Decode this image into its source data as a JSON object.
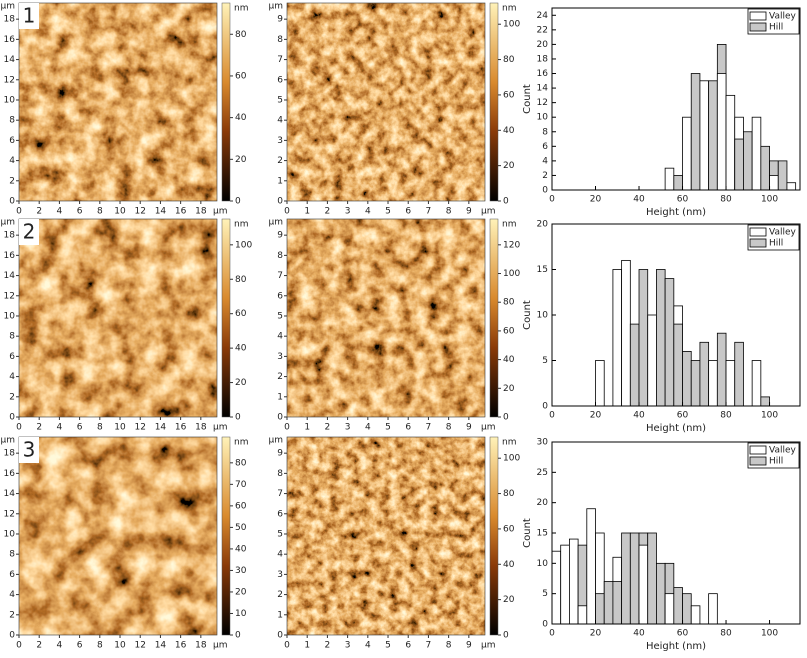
{
  "chart_data": [
    {
      "type": "image",
      "label": "1",
      "x_unit": "μm",
      "y_unit": "μm",
      "z_unit": "nm",
      "xlim": [
        0,
        19.6
      ],
      "xticks": [
        0,
        2,
        4,
        6,
        8,
        10,
        12,
        14,
        16,
        18
      ],
      "ylim": [
        0,
        19.6
      ],
      "yticks": [
        0,
        2,
        4,
        6,
        8,
        10,
        12,
        14,
        16,
        18
      ],
      "zlim": [
        0,
        95
      ],
      "zticks": [
        0,
        20,
        40,
        60,
        80
      ]
    },
    {
      "type": "image",
      "x_unit": "μm",
      "y_unit": "μm",
      "z_unit": "nm",
      "xlim": [
        0,
        9.8
      ],
      "xticks": [
        0,
        1,
        2,
        3,
        4,
        5,
        6,
        7,
        8,
        9
      ],
      "ylim": [
        0,
        9.8
      ],
      "yticks": [
        0,
        1,
        2,
        3,
        4,
        5,
        6,
        7,
        8,
        9
      ],
      "zlim": [
        0,
        112
      ],
      "zticks": [
        0,
        20,
        40,
        60,
        80,
        100
      ]
    },
    {
      "type": "histogram",
      "xlabel": "Height (nm)",
      "ylabel": "Count",
      "bins": [
        52,
        56,
        60,
        64,
        68,
        72,
        76,
        80,
        84,
        88,
        92,
        96,
        100,
        104,
        108,
        112
      ],
      "series": [
        {
          "name": "Valley",
          "color": "#ffffff",
          "values": [
            3,
            0,
            10,
            0,
            15,
            0,
            16,
            13,
            10,
            0,
            10,
            0,
            2,
            0,
            1
          ]
        },
        {
          "name": "Hill",
          "color": "#c8c8c8",
          "values": [
            0,
            2,
            0,
            16,
            0,
            15,
            20,
            0,
            7,
            8,
            0,
            6,
            4,
            4,
            0
          ]
        }
      ],
      "xlim": [
        0,
        114
      ],
      "xticks": [
        0,
        20,
        40,
        60,
        80,
        100
      ],
      "ylim": [
        0,
        25
      ],
      "yticks": [
        0,
        2,
        4,
        6,
        8,
        10,
        12,
        14,
        16,
        18,
        20,
        22,
        24
      ]
    },
    {
      "type": "image",
      "label": "2",
      "x_unit": "μm",
      "y_unit": "μm",
      "z_unit": "nm",
      "xlim": [
        0,
        19.6
      ],
      "xticks": [
        0,
        2,
        4,
        6,
        8,
        10,
        12,
        14,
        16,
        18
      ],
      "ylim": [
        0,
        19.6
      ],
      "yticks": [
        0,
        2,
        4,
        6,
        8,
        10,
        12,
        14,
        16,
        18
      ],
      "zlim": [
        0,
        115
      ],
      "zticks": [
        0,
        20,
        40,
        60,
        80,
        100
      ]
    },
    {
      "type": "image",
      "x_unit": "μm",
      "y_unit": "μm",
      "z_unit": "nm",
      "xlim": [
        0,
        9.8
      ],
      "xticks": [
        0,
        1,
        2,
        3,
        4,
        5,
        6,
        7,
        8,
        9
      ],
      "ylim": [
        0,
        9.8
      ],
      "yticks": [
        0,
        1,
        2,
        3,
        4,
        5,
        6,
        7,
        8,
        9
      ],
      "zlim": [
        0,
        138
      ],
      "zticks": [
        0,
        20,
        40,
        60,
        80,
        100,
        120
      ]
    },
    {
      "type": "histogram",
      "xlabel": "Height (nm)",
      "ylabel": "Count",
      "bins": [
        20,
        24,
        28,
        32,
        36,
        40,
        44,
        48,
        52,
        56,
        60,
        64,
        68,
        72,
        76,
        80,
        84,
        88,
        92,
        96,
        100
      ],
      "series": [
        {
          "name": "Valley",
          "color": "#ffffff",
          "values": [
            5,
            0,
            15,
            16,
            0,
            0,
            10,
            0,
            0,
            11,
            0,
            0,
            0,
            5,
            0,
            5,
            0,
            0,
            5,
            0
          ]
        },
        {
          "name": "Hill",
          "color": "#c8c8c8",
          "values": [
            0,
            0,
            0,
            0,
            9,
            15,
            0,
            15,
            14,
            9,
            6,
            5,
            7,
            0,
            8,
            0,
            7,
            0,
            0,
            1
          ]
        }
      ],
      "xlim": [
        0,
        114
      ],
      "xticks": [
        0,
        20,
        40,
        60,
        80,
        100
      ],
      "ylim": [
        0,
        20
      ],
      "yticks": [
        0,
        5,
        10,
        15,
        20
      ]
    },
    {
      "type": "image",
      "label": "3",
      "x_unit": "μm",
      "y_unit": "μm",
      "z_unit": "nm",
      "xlim": [
        0,
        19.6
      ],
      "xticks": [
        0,
        2,
        4,
        6,
        8,
        10,
        12,
        14,
        16,
        18
      ],
      "ylim": [
        0,
        19.6
      ],
      "yticks": [
        0,
        2,
        4,
        6,
        8,
        10,
        12,
        14,
        16,
        18
      ],
      "zlim": [
        0,
        92
      ],
      "zticks": [
        0,
        10,
        20,
        30,
        40,
        50,
        60,
        70,
        80
      ]
    },
    {
      "type": "image",
      "x_unit": "μm",
      "y_unit": "μm",
      "z_unit": "nm",
      "xlim": [
        0,
        9.8
      ],
      "xticks": [
        0,
        1,
        2,
        3,
        4,
        5,
        6,
        7,
        8,
        9
      ],
      "ylim": [
        0,
        9.8
      ],
      "yticks": [
        0,
        1,
        2,
        3,
        4,
        5,
        6,
        7,
        8,
        9
      ],
      "zlim": [
        0,
        112
      ],
      "zticks": [
        0,
        20,
        40,
        60,
        80,
        100
      ]
    },
    {
      "type": "histogram",
      "xlabel": "Height (nm)",
      "ylabel": "Count",
      "bins": [
        0,
        4,
        8,
        12,
        16,
        20,
        24,
        28,
        32,
        36,
        40,
        44,
        48,
        52,
        56,
        60,
        64,
        68,
        72,
        76
      ],
      "series": [
        {
          "name": "Valley",
          "color": "#ffffff",
          "values": [
            12,
            13,
            14,
            3,
            19,
            15,
            0,
            11,
            0,
            0,
            13,
            0,
            0,
            5,
            0,
            0,
            3,
            0,
            5
          ]
        },
        {
          "name": "Hill",
          "color": "#c8c8c8",
          "values": [
            0,
            0,
            0,
            13,
            0,
            5,
            7,
            7,
            15,
            15,
            15,
            15,
            10,
            10,
            6,
            5,
            0,
            0,
            0
          ]
        }
      ],
      "xlim": [
        0,
        114
      ],
      "xticks": [
        0,
        20,
        40,
        60,
        80,
        100
      ],
      "ylim": [
        0,
        30
      ],
      "yticks": [
        0,
        5,
        10,
        15,
        20,
        25,
        30
      ]
    }
  ]
}
